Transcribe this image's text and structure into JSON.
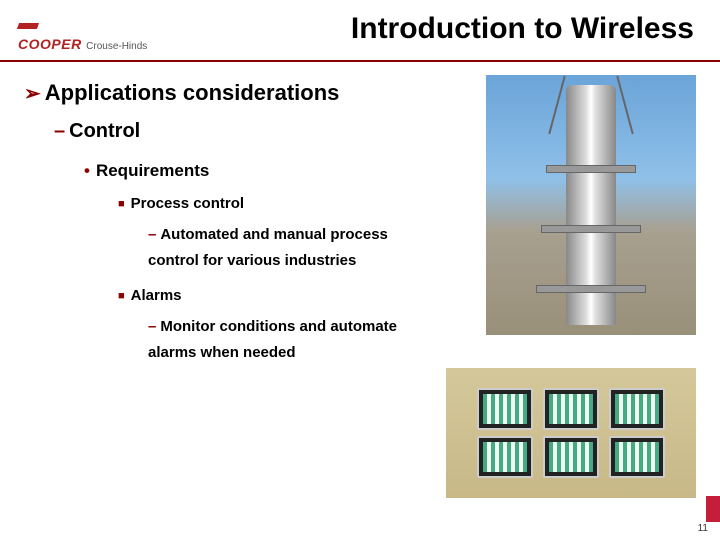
{
  "logo": {
    "brand": "COOPER",
    "sub": "Crouse-Hinds"
  },
  "title": "Introduction to Wireless",
  "outline": {
    "l1": "Applications considerations",
    "l2": "Control",
    "l3": "Requirements",
    "items": [
      {
        "heading": "Process control",
        "detail": "Automated and manual process control for various industries"
      },
      {
        "heading": "Alarms",
        "detail": "Monitor conditions and automate alarms when needed"
      }
    ]
  },
  "colors": {
    "rule": "#8b0000",
    "accent": "#b22222",
    "text": "#000000",
    "bg": "#ffffff",
    "corner": "#c41e3a"
  },
  "images": {
    "tower_alt": "Industrial tower with platforms against sky",
    "monitors_alt": "Row of control room monitors showing green bar displays",
    "monitor_count": 6
  },
  "page_number": "11"
}
